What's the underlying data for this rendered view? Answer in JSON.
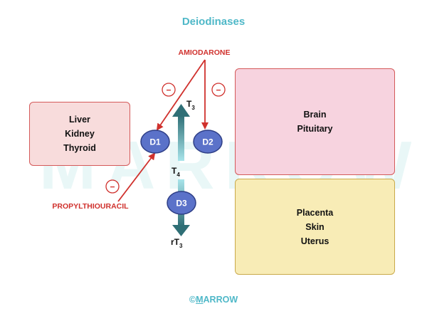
{
  "title": "Deiodinases",
  "drugs": {
    "amiodarone": "AMIODARONE",
    "propylthiouracil": "PROPYLTHIOURACIL",
    "inhibit_symbol": "−"
  },
  "enzymes": {
    "d1": "D1",
    "d2": "D2",
    "d3": "D3"
  },
  "hormones": {
    "t3": {
      "base": "T",
      "sub": "3"
    },
    "t4": {
      "base": "T",
      "sub": "4"
    },
    "rt3": {
      "base": "rT",
      "sub": "3"
    }
  },
  "tissues": {
    "liver_group": [
      "Liver",
      "Kidney",
      "Thyroid"
    ],
    "brain_group": [
      "Brain",
      "Pituitary"
    ],
    "placenta_group": [
      "Placenta",
      "Skin",
      "Uterus"
    ]
  },
  "watermark": "MARROW",
  "footer": {
    "symbol": "©",
    "first_letter": "M",
    "rest": "ARROW"
  },
  "colors": {
    "title": "#4fb8c8",
    "inhibit_red": "#d0312d",
    "enzyme_fill": "#5b72c9",
    "arrow_teal": "#2f6f76",
    "liver_box": "#f8dcdc",
    "brain_box": "#f7d3df",
    "placenta_box": "#f8ecb6"
  }
}
